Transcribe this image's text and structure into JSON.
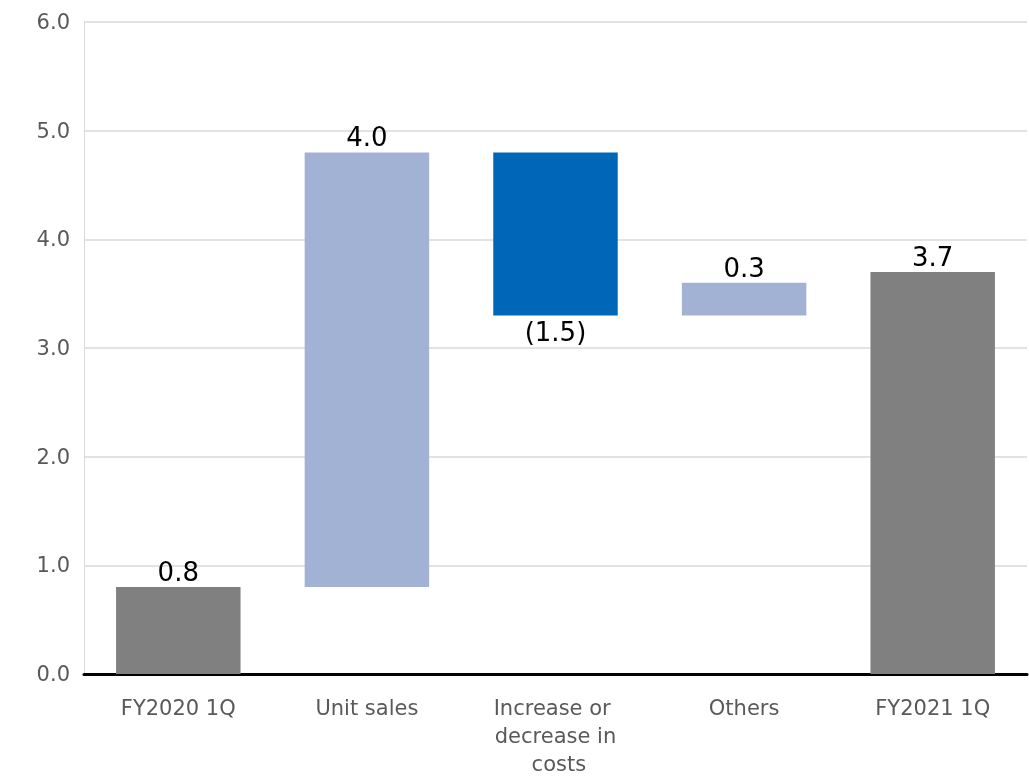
{
  "chart_data": {
    "type": "bar",
    "categories": [
      "FY2020 1Q",
      "Unit sales",
      "Increase or decrease in costs",
      "Others",
      "FY2021 1Q"
    ],
    "values": [
      0.8,
      4.0,
      -1.5,
      0.3,
      3.7
    ],
    "base": [
      0,
      0.8,
      4.8,
      3.3,
      0
    ],
    "colors": [
      "#808080",
      "#a2b2d4",
      "#0066b8",
      "#a2b2d4",
      "#808080"
    ],
    "value_labels": [
      "0.8",
      "4.0",
      "(1.5)",
      "0.3",
      "3.7"
    ],
    "ylim": [
      0,
      6
    ],
    "yticks": [
      {
        "value": 0,
        "label": "0.0"
      },
      {
        "value": 1,
        "label": "1.0"
      },
      {
        "value": 2,
        "label": "2.0"
      },
      {
        "value": 3,
        "label": "3.0"
      },
      {
        "value": 4,
        "label": "4.0"
      },
      {
        "value": 5,
        "label": "5.0"
      },
      {
        "value": 6,
        "label": "6.0"
      }
    ],
    "grid": "y"
  }
}
